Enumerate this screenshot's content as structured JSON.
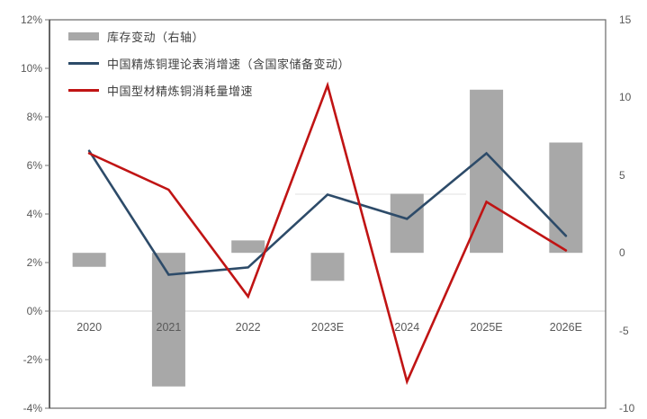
{
  "chart_data": {
    "type": "combo",
    "title": "",
    "categories": [
      "2020",
      "2021",
      "2022",
      "2023E",
      "2024",
      "2025E",
      "2026E"
    ],
    "series": [
      {
        "name": "库存变动（右轴）",
        "type": "bar",
        "axis": "right",
        "color": "#a8a8a8",
        "values": [
          -0.9,
          -8.6,
          0.8,
          -1.8,
          3.8,
          10.5,
          7.1
        ]
      },
      {
        "name": "中国精炼铜理论表消增速（含国家储备变动）",
        "type": "line",
        "axis": "left",
        "color": "#2d4b69",
        "values": [
          6.6,
          1.5,
          1.8,
          4.8,
          3.8,
          6.5,
          3.1
        ]
      },
      {
        "name": "中国型材精炼铜消耗量增速",
        "type": "line",
        "axis": "left",
        "color": "#c01414",
        "values": [
          6.5,
          5.0,
          0.6,
          9.3,
          -2.9,
          4.5,
          2.5
        ]
      }
    ],
    "left_axis": {
      "min": -4,
      "max": 12,
      "step": 2,
      "ticks": [
        "12%",
        "10%",
        "8%",
        "6%",
        "4%",
        "2%",
        "0%",
        "-2%",
        "-4%"
      ]
    },
    "right_axis": {
      "min": -10,
      "max": 15,
      "step": 5,
      "ticks": [
        "15",
        "10",
        "5",
        "0",
        "-5",
        "-10"
      ]
    },
    "legend_position": "top-left-inside",
    "grid": "zero-line-only",
    "xlabel": "",
    "ylabel": ""
  },
  "colors": {
    "background": "#ffffff",
    "frame": "#737373",
    "left_axis_line": "#404040",
    "zero_gridline": "#d9d9d9",
    "faint_artifact_line": "#e7e7e7",
    "tick_text": "#595959",
    "legend_text": "#404040"
  }
}
